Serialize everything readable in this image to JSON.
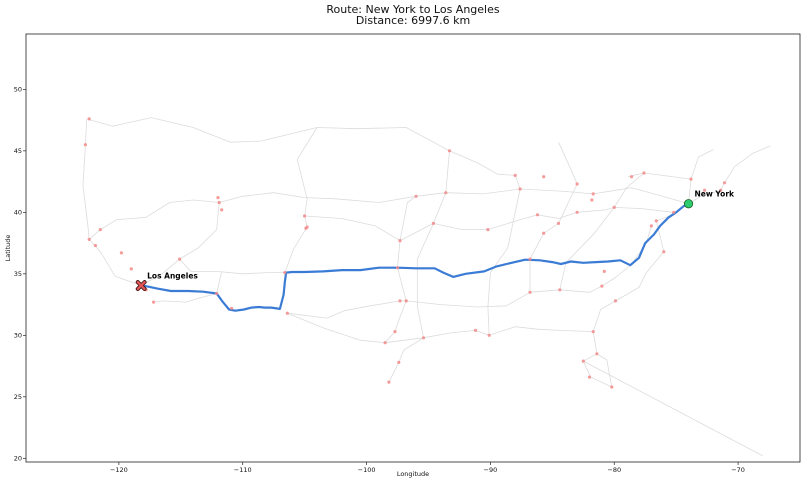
{
  "chart_data": {
    "type": "line",
    "title": "Route: New York to Los Angeles",
    "subtitle": "Distance: 6997.6 km",
    "xlabel": "Longitude",
    "ylabel": "Latitude",
    "xlim": [
      -127.5,
      -65
    ],
    "ylim": [
      19.7,
      54.5
    ],
    "xticks": [
      -120,
      -110,
      -100,
      -90,
      -80,
      -70
    ],
    "yticks": [
      20,
      25,
      30,
      35,
      40,
      45,
      50
    ],
    "xtick_labels": [
      "−120",
      "−110",
      "−100",
      "−90",
      "−80",
      "−70"
    ],
    "ytick_labels": [
      "20",
      "25",
      "30",
      "35",
      "40",
      "45",
      "50"
    ],
    "grid": false,
    "colors": {
      "route": "#3a7bd5",
      "network": "#dcdcdc",
      "cities": "#f28b8b",
      "start": "#2ecc71",
      "end": "#e05555"
    },
    "series": [
      {
        "role": "route",
        "x": [
          -118.2,
          -117.6,
          -116.9,
          -115.8,
          -114.4,
          -113.2,
          -112.1,
          -111.6,
          -111.1,
          -110.6,
          -109.9,
          -109.3,
          -108.7,
          -108.2,
          -107.7,
          -107.0,
          -106.7,
          -106.6,
          -106.5,
          -106.0,
          -105.0,
          -103.5,
          -102.0,
          -100.5,
          -99.0,
          -97.5,
          -96.0,
          -94.5,
          -93.8,
          -93.0,
          -92.0,
          -90.5,
          -89.5,
          -88.5,
          -87.2,
          -86.0,
          -85.0,
          -84.3,
          -83.5,
          -82.5,
          -81.5,
          -80.5,
          -79.5,
          -78.7,
          -78.0,
          -77.5,
          -76.8,
          -76.3,
          -75.6,
          -75.0,
          -74.4,
          -74.0
        ],
        "y": [
          34.05,
          33.95,
          33.8,
          33.6,
          33.6,
          33.55,
          33.4,
          32.7,
          32.1,
          32.0,
          32.1,
          32.25,
          32.3,
          32.25,
          32.25,
          32.15,
          33.3,
          34.3,
          35.1,
          35.15,
          35.15,
          35.2,
          35.3,
          35.3,
          35.5,
          35.5,
          35.45,
          35.45,
          35.1,
          34.75,
          35.0,
          35.2,
          35.6,
          35.85,
          36.15,
          36.1,
          35.95,
          35.8,
          36.0,
          35.9,
          35.95,
          36.0,
          36.1,
          35.7,
          36.3,
          37.5,
          38.2,
          38.9,
          39.6,
          40.0,
          40.5,
          40.7
        ]
      }
    ],
    "cities": [
      {
        "x": -122.4,
        "y": 47.6
      },
      {
        "x": -122.7,
        "y": 45.5
      },
      {
        "x": -122.4,
        "y": 37.8
      },
      {
        "x": -121.5,
        "y": 38.6
      },
      {
        "x": -121.9,
        "y": 37.3
      },
      {
        "x": -119.8,
        "y": 36.7
      },
      {
        "x": -119.0,
        "y": 35.4
      },
      {
        "x": -117.8,
        "y": 33.7
      },
      {
        "x": -117.2,
        "y": 32.7
      },
      {
        "x": -115.1,
        "y": 36.2
      },
      {
        "x": -111.9,
        "y": 40.8
      },
      {
        "x": -111.7,
        "y": 40.2
      },
      {
        "x": -112.0,
        "y": 41.2
      },
      {
        "x": -112.1,
        "y": 33.4
      },
      {
        "x": -110.9,
        "y": 32.2
      },
      {
        "x": -106.6,
        "y": 35.1
      },
      {
        "x": -106.4,
        "y": 31.8
      },
      {
        "x": -105.0,
        "y": 39.7
      },
      {
        "x": -104.8,
        "y": 38.8
      },
      {
        "x": -97.5,
        "y": 35.5
      },
      {
        "x": -97.3,
        "y": 37.7
      },
      {
        "x": -96.0,
        "y": 41.3
      },
      {
        "x": -96.8,
        "y": 32.8
      },
      {
        "x": -97.3,
        "y": 32.8
      },
      {
        "x": -97.7,
        "y": 30.3
      },
      {
        "x": -98.5,
        "y": 29.4
      },
      {
        "x": -95.4,
        "y": 29.8
      },
      {
        "x": -97.4,
        "y": 27.8
      },
      {
        "x": -94.6,
        "y": 39.1
      },
      {
        "x": -93.6,
        "y": 41.6
      },
      {
        "x": -93.3,
        "y": 45.0
      },
      {
        "x": -90.2,
        "y": 38.6
      },
      {
        "x": -90.1,
        "y": 30.0
      },
      {
        "x": -91.2,
        "y": 30.4
      },
      {
        "x": -88.0,
        "y": 43.0
      },
      {
        "x": -87.6,
        "y": 41.9
      },
      {
        "x": -86.2,
        "y": 39.8
      },
      {
        "x": -86.8,
        "y": 36.2
      },
      {
        "x": -86.8,
        "y": 33.5
      },
      {
        "x": -85.7,
        "y": 38.3
      },
      {
        "x": -84.5,
        "y": 39.1
      },
      {
        "x": -83.0,
        "y": 40.0
      },
      {
        "x": -83.0,
        "y": 42.3
      },
      {
        "x": -81.7,
        "y": 41.5
      },
      {
        "x": -80.0,
        "y": 40.4
      },
      {
        "x": -84.4,
        "y": 33.7
      },
      {
        "x": -85.7,
        "y": 42.9
      },
      {
        "x": -81.7,
        "y": 30.3
      },
      {
        "x": -82.5,
        "y": 27.9
      },
      {
        "x": -81.4,
        "y": 28.5
      },
      {
        "x": -80.2,
        "y": 25.8
      },
      {
        "x": -81.0,
        "y": 34.0
      },
      {
        "x": -79.9,
        "y": 32.8
      },
      {
        "x": -80.8,
        "y": 35.2
      },
      {
        "x": -82.0,
        "y": 26.6
      },
      {
        "x": -81.8,
        "y": 41.0
      },
      {
        "x": -78.6,
        "y": 42.9
      },
      {
        "x": -77.6,
        "y": 43.2
      },
      {
        "x": -76.6,
        "y": 39.3
      },
      {
        "x": -77.0,
        "y": 38.9
      },
      {
        "x": -75.2,
        "y": 40.0
      },
      {
        "x": -76.0,
        "y": 36.8
      },
      {
        "x": -73.8,
        "y": 42.7
      },
      {
        "x": -71.1,
        "y": 42.4
      },
      {
        "x": -72.7,
        "y": 41.8
      },
      {
        "x": -71.4,
        "y": 41.8
      },
      {
        "x": -104.9,
        "y": 38.7
      },
      {
        "x": -98.2,
        "y": 26.2
      }
    ],
    "points": [
      {
        "name": "New York",
        "x": -74.0,
        "y": 40.7,
        "marker": "circle"
      },
      {
        "name": "Los Angeles",
        "x": -118.2,
        "y": 34.05,
        "marker": "x"
      }
    ],
    "network": [
      [
        [
          -122.6,
          47.6
        ],
        [
          -122.7,
          45.5
        ],
        [
          -122.9,
          42.2
        ],
        [
          -122.5,
          38.9
        ],
        [
          -122.4,
          37.8
        ],
        [
          -121.5,
          36.8
        ],
        [
          -120.3,
          34.8
        ],
        [
          -118.2,
          34.05
        ]
      ],
      [
        [
          -122.4,
          37.8
        ],
        [
          -121.5,
          38.6
        ],
        [
          -120.2,
          39.4
        ],
        [
          -117.8,
          39.6
        ],
        [
          -115.9,
          40.8
        ],
        [
          -114.0,
          41.0
        ],
        [
          -111.9,
          40.8
        ],
        [
          -110.0,
          41.3
        ],
        [
          -107.5,
          41.6
        ],
        [
          -105.0,
          41.2
        ],
        [
          -102.5,
          41.1
        ],
        [
          -99.0,
          40.8
        ],
        [
          -96.0,
          41.3
        ],
        [
          -93.6,
          41.6
        ],
        [
          -90.6,
          41.5
        ],
        [
          -87.6,
          41.9
        ],
        [
          -84.0,
          41.7
        ],
        [
          -81.7,
          41.5
        ],
        [
          -78.6,
          42.0
        ],
        [
          -75.7,
          41.2
        ],
        [
          -74.0,
          40.7
        ]
      ],
      [
        [
          -122.6,
          47.6
        ],
        [
          -120.5,
          47.0
        ],
        [
          -117.4,
          47.7
        ],
        [
          -114.0,
          46.9
        ],
        [
          -111.0,
          45.7
        ],
        [
          -108.5,
          45.8
        ],
        [
          -104.0,
          46.9
        ],
        [
          -100.8,
          46.8
        ],
        [
          -96.8,
          46.9
        ],
        [
          -93.3,
          45.0
        ],
        [
          -91.0,
          44.0
        ],
        [
          -89.4,
          43.1
        ],
        [
          -88.0,
          43.0
        ],
        [
          -87.6,
          41.9
        ]
      ],
      [
        [
          -118.2,
          34.05
        ],
        [
          -116.5,
          35.0
        ],
        [
          -115.1,
          36.2
        ],
        [
          -113.6,
          37.1
        ],
        [
          -112.1,
          38.6
        ],
        [
          -111.9,
          40.8
        ]
      ],
      [
        [
          -115.1,
          36.2
        ],
        [
          -114.2,
          35.2
        ],
        [
          -112.1,
          35.2
        ],
        [
          -110.0,
          35.0
        ],
        [
          -108.0,
          35.1
        ],
        [
          -106.6,
          35.1
        ]
      ],
      [
        [
          -106.6,
          35.1
        ],
        [
          -105.9,
          37.0
        ],
        [
          -104.8,
          38.8
        ],
        [
          -105.0,
          39.7
        ],
        [
          -104.8,
          41.1
        ],
        [
          -105.6,
          44.3
        ],
        [
          -104.0,
          46.9
        ]
      ],
      [
        [
          -105.0,
          39.7
        ],
        [
          -102.0,
          39.5
        ],
        [
          -99.3,
          38.9
        ],
        [
          -97.3,
          37.7
        ],
        [
          -94.6,
          39.1
        ],
        [
          -92.3,
          38.6
        ],
        [
          -90.2,
          38.6
        ],
        [
          -87.6,
          39.4
        ],
        [
          -86.2,
          39.8
        ],
        [
          -84.5,
          39.5
        ],
        [
          -83.0,
          40.0
        ],
        [
          -80.7,
          40.2
        ],
        [
          -80.0,
          40.4
        ],
        [
          -77.8,
          40.3
        ],
        [
          -75.2,
          40.0
        ]
      ],
      [
        [
          -106.4,
          31.8
        ],
        [
          -103.2,
          31.4
        ],
        [
          -101.8,
          32.0
        ],
        [
          -99.7,
          32.4
        ],
        [
          -97.3,
          32.8
        ],
        [
          -96.8,
          32.8
        ],
        [
          -94.0,
          32.5
        ],
        [
          -91.0,
          32.3
        ],
        [
          -88.7,
          32.4
        ],
        [
          -86.8,
          33.5
        ],
        [
          -84.4,
          33.7
        ],
        [
          -82.0,
          33.5
        ],
        [
          -81.0,
          34.0
        ],
        [
          -79.9,
          34.7
        ],
        [
          -78.6,
          35.8
        ],
        [
          -77.4,
          37.5
        ],
        [
          -77.0,
          38.9
        ]
      ],
      [
        [
          -106.4,
          31.8
        ],
        [
          -103.5,
          30.6
        ],
        [
          -100.5,
          29.6
        ],
        [
          -98.5,
          29.4
        ],
        [
          -95.4,
          29.8
        ],
        [
          -93.2,
          30.2
        ],
        [
          -91.2,
          30.4
        ],
        [
          -90.1,
          30.0
        ],
        [
          -88.0,
          30.7
        ],
        [
          -86.2,
          30.5
        ],
        [
          -84.3,
          30.4
        ],
        [
          -81.7,
          30.3
        ]
      ],
      [
        [
          -98.5,
          29.4
        ],
        [
          -97.7,
          30.3
        ],
        [
          -97.3,
          31.5
        ],
        [
          -96.8,
          32.8
        ],
        [
          -97.5,
          35.5
        ],
        [
          -97.3,
          37.7
        ],
        [
          -96.7,
          40.8
        ],
        [
          -96.0,
          41.3
        ]
      ],
      [
        [
          -95.4,
          29.8
        ],
        [
          -95.9,
          32.4
        ],
        [
          -95.9,
          36.2
        ],
        [
          -94.6,
          39.1
        ],
        [
          -93.6,
          41.6
        ],
        [
          -93.3,
          45.0
        ]
      ],
      [
        [
          -90.1,
          30.0
        ],
        [
          -90.2,
          32.3
        ],
        [
          -90.0,
          35.1
        ],
        [
          -88.6,
          37.1
        ],
        [
          -87.6,
          41.9
        ]
      ],
      [
        [
          -86.8,
          33.5
        ],
        [
          -86.8,
          36.2
        ],
        [
          -85.7,
          38.3
        ],
        [
          -84.5,
          39.1
        ],
        [
          -83.0,
          42.3
        ],
        [
          -83.5,
          43.5
        ],
        [
          -84.5,
          45.7
        ]
      ],
      [
        [
          -84.4,
          33.7
        ],
        [
          -83.9,
          35.9
        ],
        [
          -81.6,
          38.3
        ],
        [
          -80.0,
          40.4
        ],
        [
          -79.0,
          42.0
        ],
        [
          -77.6,
          43.2
        ]
      ],
      [
        [
          -81.7,
          30.3
        ],
        [
          -81.1,
          32.1
        ],
        [
          -79.9,
          32.8
        ],
        [
          -78.0,
          33.9
        ],
        [
          -77.4,
          35.1
        ],
        [
          -76.0,
          36.8
        ],
        [
          -76.6,
          39.3
        ],
        [
          -75.5,
          39.7
        ],
        [
          -74.0,
          40.7
        ],
        [
          -73.0,
          41.3
        ],
        [
          -71.4,
          41.8
        ],
        [
          -71.1,
          42.4
        ],
        [
          -70.3,
          43.7
        ],
        [
          -68.8,
          44.8
        ],
        [
          -67.4,
          45.4
        ]
      ],
      [
        [
          -81.7,
          30.3
        ],
        [
          -81.4,
          28.5
        ],
        [
          -82.5,
          27.9
        ],
        [
          -81.9,
          26.6
        ],
        [
          -80.2,
          25.8
        ]
      ],
      [
        [
          -81.4,
          28.5
        ],
        [
          -80.6,
          28.0
        ],
        [
          -80.2,
          25.8
        ]
      ],
      [
        [
          -73.8,
          42.7
        ],
        [
          -73.2,
          44.5
        ],
        [
          -72.0,
          45.1
        ]
      ],
      [
        [
          -74.0,
          40.7
        ],
        [
          -73.8,
          42.7
        ],
        [
          -76.1,
          43.0
        ],
        [
          -77.6,
          43.2
        ],
        [
          -78.9,
          42.9
        ]
      ],
      [
        [
          -112.1,
          33.4
        ],
        [
          -111.7,
          35.2
        ]
      ],
      [
        [
          -112.1,
          33.4
        ],
        [
          -113.6,
          33.0
        ],
        [
          -114.6,
          32.7
        ],
        [
          -116.4,
          32.8
        ],
        [
          -117.2,
          32.7
        ]
      ],
      [
        [
          -82.5,
          27.9
        ],
        [
          -68.0,
          20.2
        ]
      ],
      [
        [
          -98.2,
          26.2
        ],
        [
          -97.4,
          27.8
        ],
        [
          -97.0,
          28.8
        ],
        [
          -95.4,
          29.8
        ]
      ]
    ]
  }
}
